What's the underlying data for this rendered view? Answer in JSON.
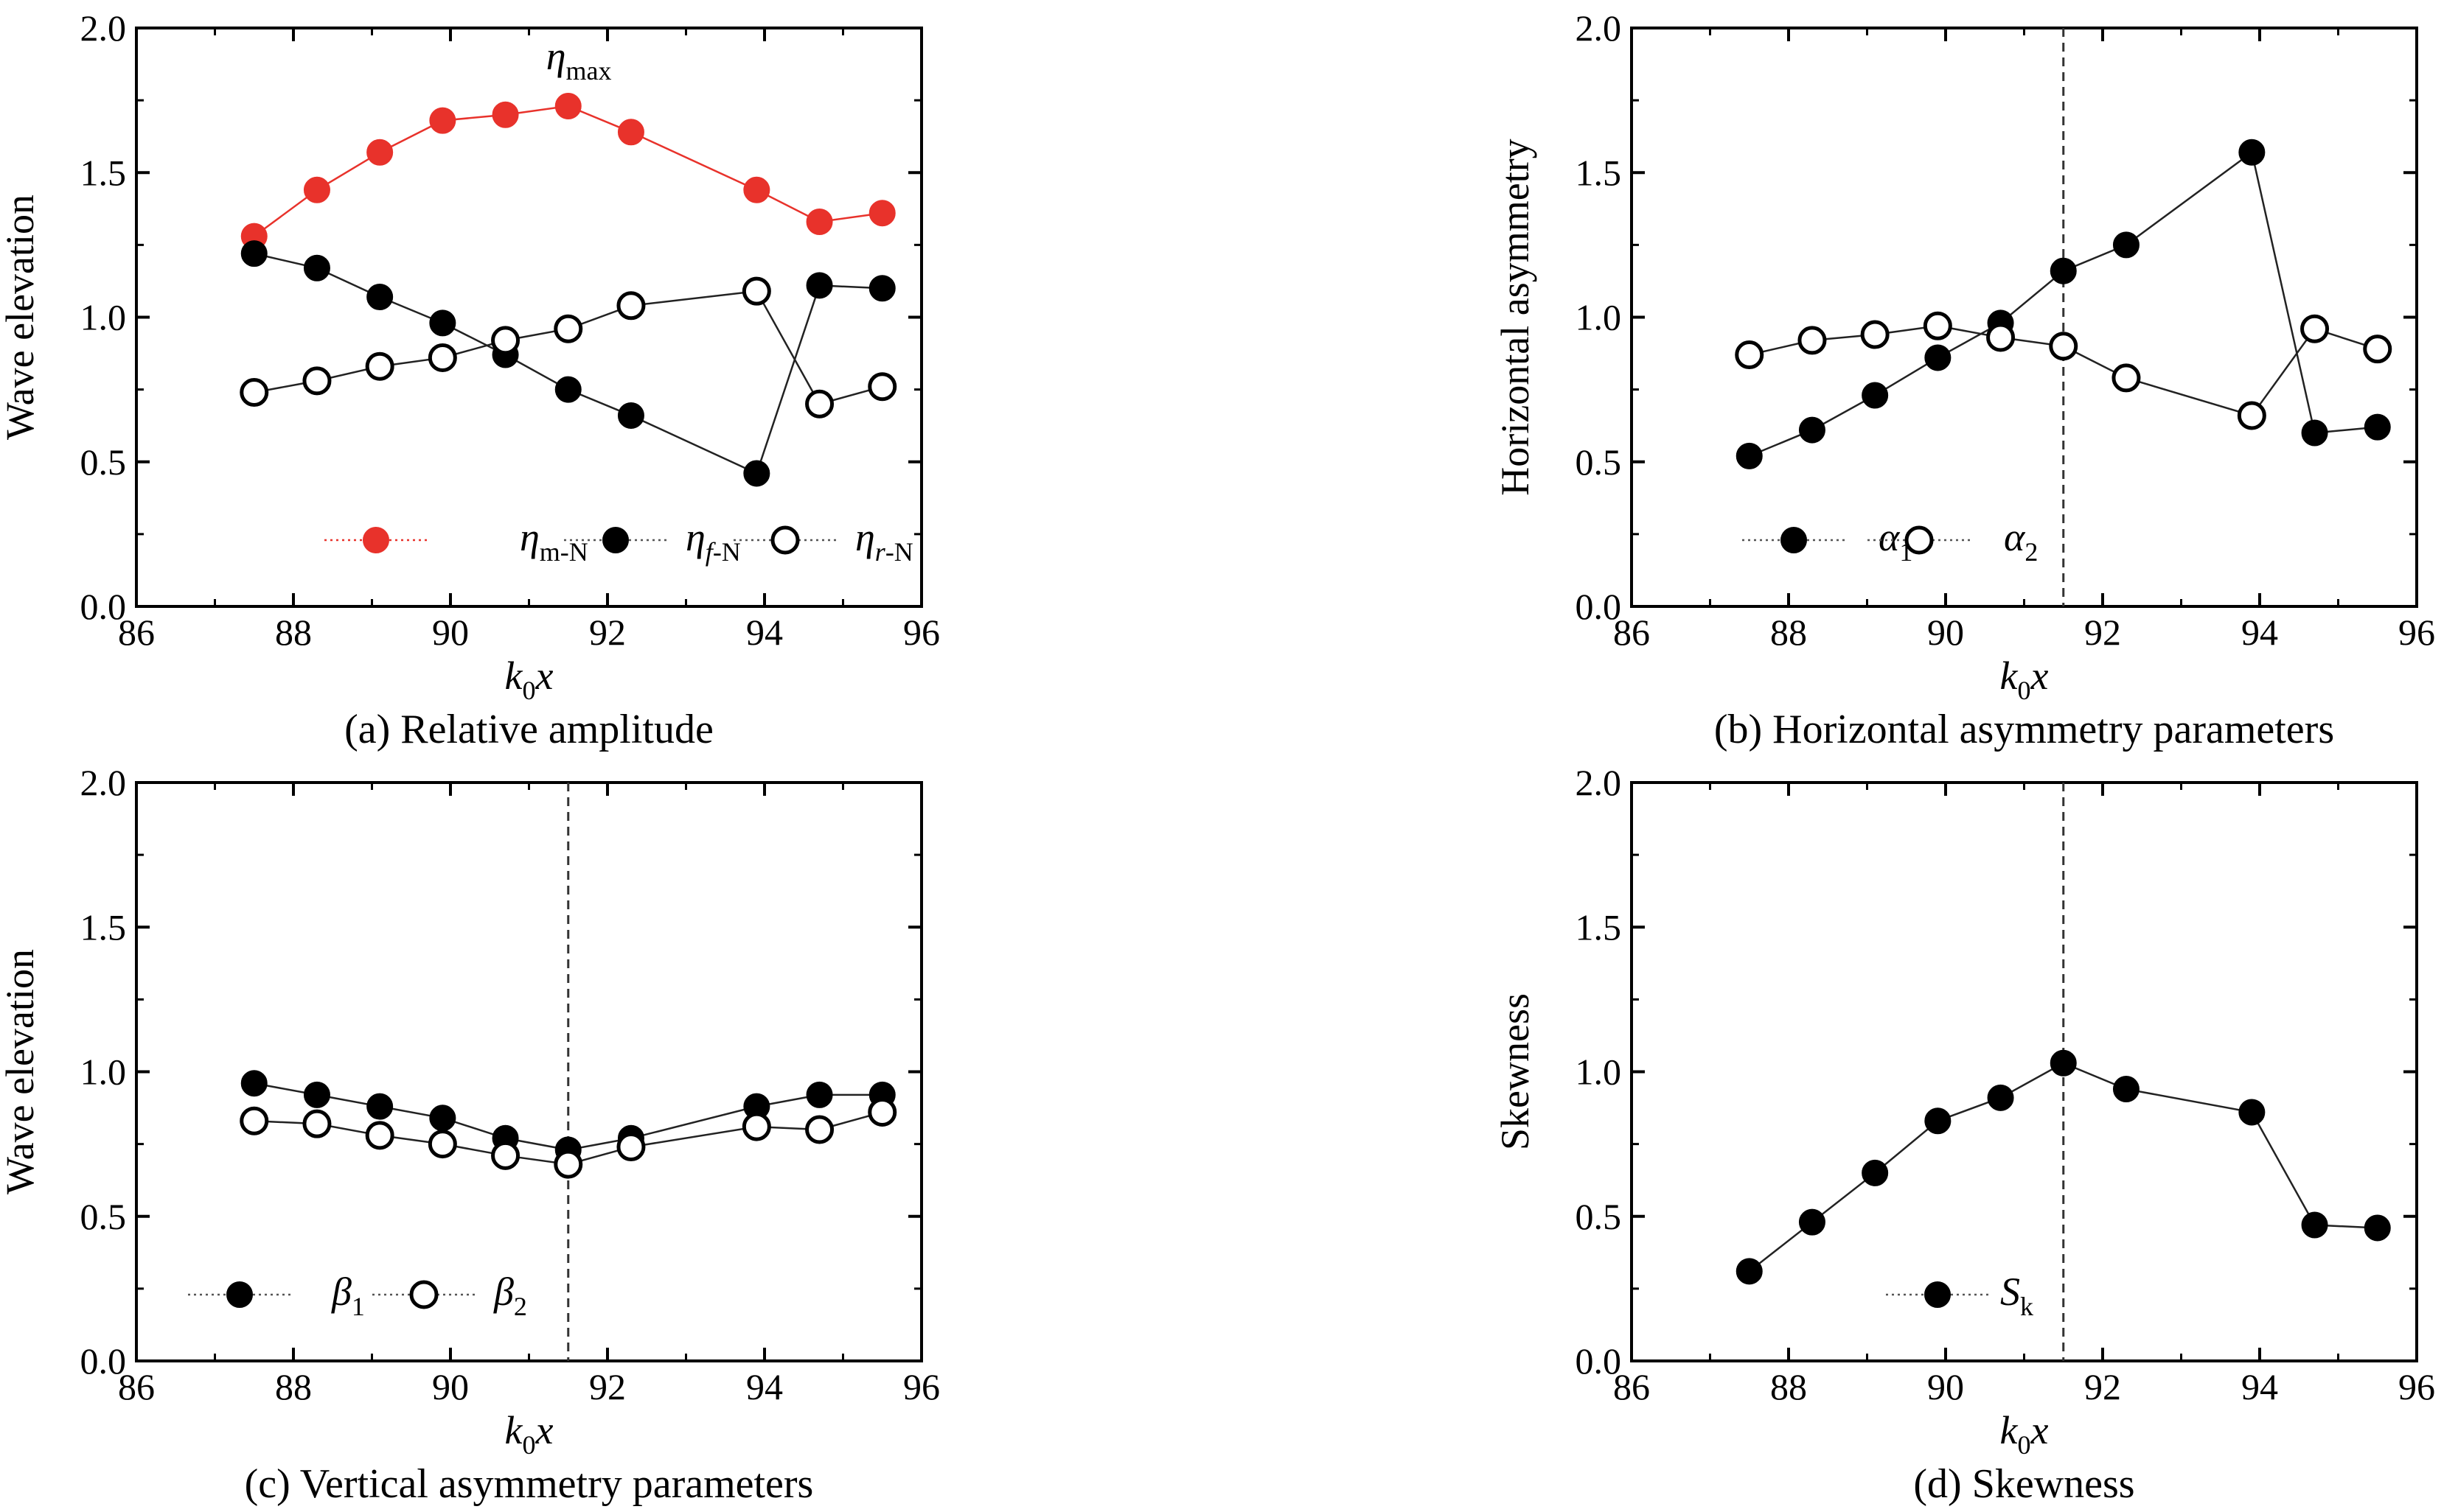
{
  "chart_data": [
    {
      "type": "line",
      "caption": "(a) Relative amplitude",
      "xlabel": {
        "main": "k",
        "sub": "0",
        "tail": "x"
      },
      "ylabel": "Wave elevation",
      "xlim": [
        86,
        96
      ],
      "ylim": [
        0.0,
        2.0
      ],
      "xticks": [
        "86",
        "88",
        "90",
        "92",
        "94",
        "96"
      ],
      "yticks": [
        "0.0",
        "0.5",
        "1.0",
        "1.5",
        "2.0"
      ],
      "vline": null,
      "annotation": {
        "text": "η",
        "sub": "max",
        "x": 91.5,
        "y": 1.73
      },
      "legend_position": "bottom",
      "series": [
        {
          "name": "η",
          "sub": "m-N",
          "sub_italic": "",
          "marker": "filled",
          "color": "#e8322b",
          "x": [
            87.5,
            88.3,
            89.1,
            89.9,
            90.7,
            91.5,
            92.3,
            93.9,
            94.7,
            95.5
          ],
          "y": [
            1.28,
            1.44,
            1.57,
            1.68,
            1.7,
            1.73,
            1.64,
            1.44,
            1.33,
            1.36
          ]
        },
        {
          "name": "η",
          "sub": "-N",
          "sub_italic": "f",
          "marker": "filled",
          "color": "#000000",
          "x": [
            87.5,
            88.3,
            89.1,
            89.9,
            90.7,
            91.5,
            92.3,
            93.9,
            94.7,
            95.5
          ],
          "y": [
            1.22,
            1.17,
            1.07,
            0.98,
            0.87,
            0.75,
            0.66,
            0.46,
            1.11,
            1.1
          ]
        },
        {
          "name": "η",
          "sub": "-N",
          "sub_italic": "r",
          "marker": "open",
          "color": "#000000",
          "x": [
            87.5,
            88.3,
            89.1,
            89.9,
            90.7,
            91.5,
            92.3,
            93.9,
            94.7,
            95.5
          ],
          "y": [
            0.74,
            0.78,
            0.83,
            0.86,
            0.92,
            0.96,
            1.04,
            1.09,
            0.7,
            0.76
          ]
        }
      ]
    },
    {
      "type": "line",
      "caption": "(b) Horizontal asymmetry parameters",
      "xlabel": {
        "main": "k",
        "sub": "0",
        "tail": "x"
      },
      "ylabel": "Horizontal asymmetry",
      "xlim": [
        86,
        96
      ],
      "ylim": [
        0.0,
        2.0
      ],
      "xticks": [
        "86",
        "88",
        "90",
        "92",
        "94",
        "96"
      ],
      "yticks": [
        "0.0",
        "0.5",
        "1.0",
        "1.5",
        "2.0"
      ],
      "vline": 91.5,
      "annotation": null,
      "legend_position": "bottom",
      "series": [
        {
          "name": "α",
          "sub": "1",
          "sub_italic": "",
          "marker": "filled",
          "color": "#000000",
          "x": [
            87.5,
            88.3,
            89.1,
            89.9,
            90.7,
            91.5,
            92.3,
            93.9,
            94.7,
            95.5
          ],
          "y": [
            0.52,
            0.61,
            0.73,
            0.86,
            0.98,
            1.16,
            1.25,
            1.57,
            0.6,
            0.62
          ]
        },
        {
          "name": "α",
          "sub": "2",
          "sub_italic": "",
          "marker": "open",
          "color": "#000000",
          "x": [
            87.5,
            88.3,
            89.1,
            89.9,
            90.7,
            91.5,
            92.3,
            93.9,
            94.7,
            95.5
          ],
          "y": [
            0.87,
            0.92,
            0.94,
            0.97,
            0.93,
            0.9,
            0.79,
            0.66,
            0.96,
            0.89
          ]
        }
      ]
    },
    {
      "type": "line",
      "caption": "(c) Vertical asymmetry parameters",
      "xlabel": {
        "main": "k",
        "sub": "0",
        "tail": "x"
      },
      "ylabel": "Wave elevation",
      "xlim": [
        86,
        96
      ],
      "ylim": [
        0.0,
        2.0
      ],
      "xticks": [
        "86",
        "88",
        "90",
        "92",
        "94",
        "96"
      ],
      "yticks": [
        "0.0",
        "0.5",
        "1.0",
        "1.5",
        "2.0"
      ],
      "vline": 91.5,
      "annotation": null,
      "legend_position": "bottom",
      "series": [
        {
          "name": "β",
          "sub": "1",
          "sub_italic": "",
          "marker": "filled",
          "color": "#000000",
          "x": [
            87.5,
            88.3,
            89.1,
            89.9,
            90.7,
            91.5,
            92.3,
            93.9,
            94.7,
            95.5
          ],
          "y": [
            0.96,
            0.92,
            0.88,
            0.84,
            0.77,
            0.73,
            0.77,
            0.88,
            0.92,
            0.92
          ]
        },
        {
          "name": "β",
          "sub": "2",
          "sub_italic": "",
          "marker": "open",
          "color": "#000000",
          "x": [
            87.5,
            88.3,
            89.1,
            89.9,
            90.7,
            91.5,
            92.3,
            93.9,
            94.7,
            95.5
          ],
          "y": [
            0.83,
            0.82,
            0.78,
            0.75,
            0.71,
            0.68,
            0.74,
            0.81,
            0.8,
            0.86
          ]
        }
      ]
    },
    {
      "type": "line",
      "caption": "(d) Skewness",
      "xlabel": {
        "main": "k",
        "sub": "0",
        "tail": "x"
      },
      "ylabel": "Skewness",
      "xlim": [
        86,
        96
      ],
      "ylim": [
        0.0,
        2.0
      ],
      "xticks": [
        "86",
        "88",
        "90",
        "92",
        "94",
        "96"
      ],
      "yticks": [
        "0.0",
        "0.5",
        "1.0",
        "1.5",
        "2.0"
      ],
      "vline": 91.5,
      "annotation": null,
      "legend_position": "bottom",
      "series": [
        {
          "name": "S",
          "sub": "k",
          "sub_italic": "",
          "marker": "filled",
          "color": "#000000",
          "x": [
            87.5,
            88.3,
            89.1,
            89.9,
            90.7,
            91.5,
            92.3,
            93.9,
            94.7,
            95.5
          ],
          "y": [
            0.31,
            0.48,
            0.65,
            0.83,
            0.91,
            1.03,
            0.94,
            0.86,
            0.47,
            0.46
          ]
        }
      ]
    }
  ]
}
